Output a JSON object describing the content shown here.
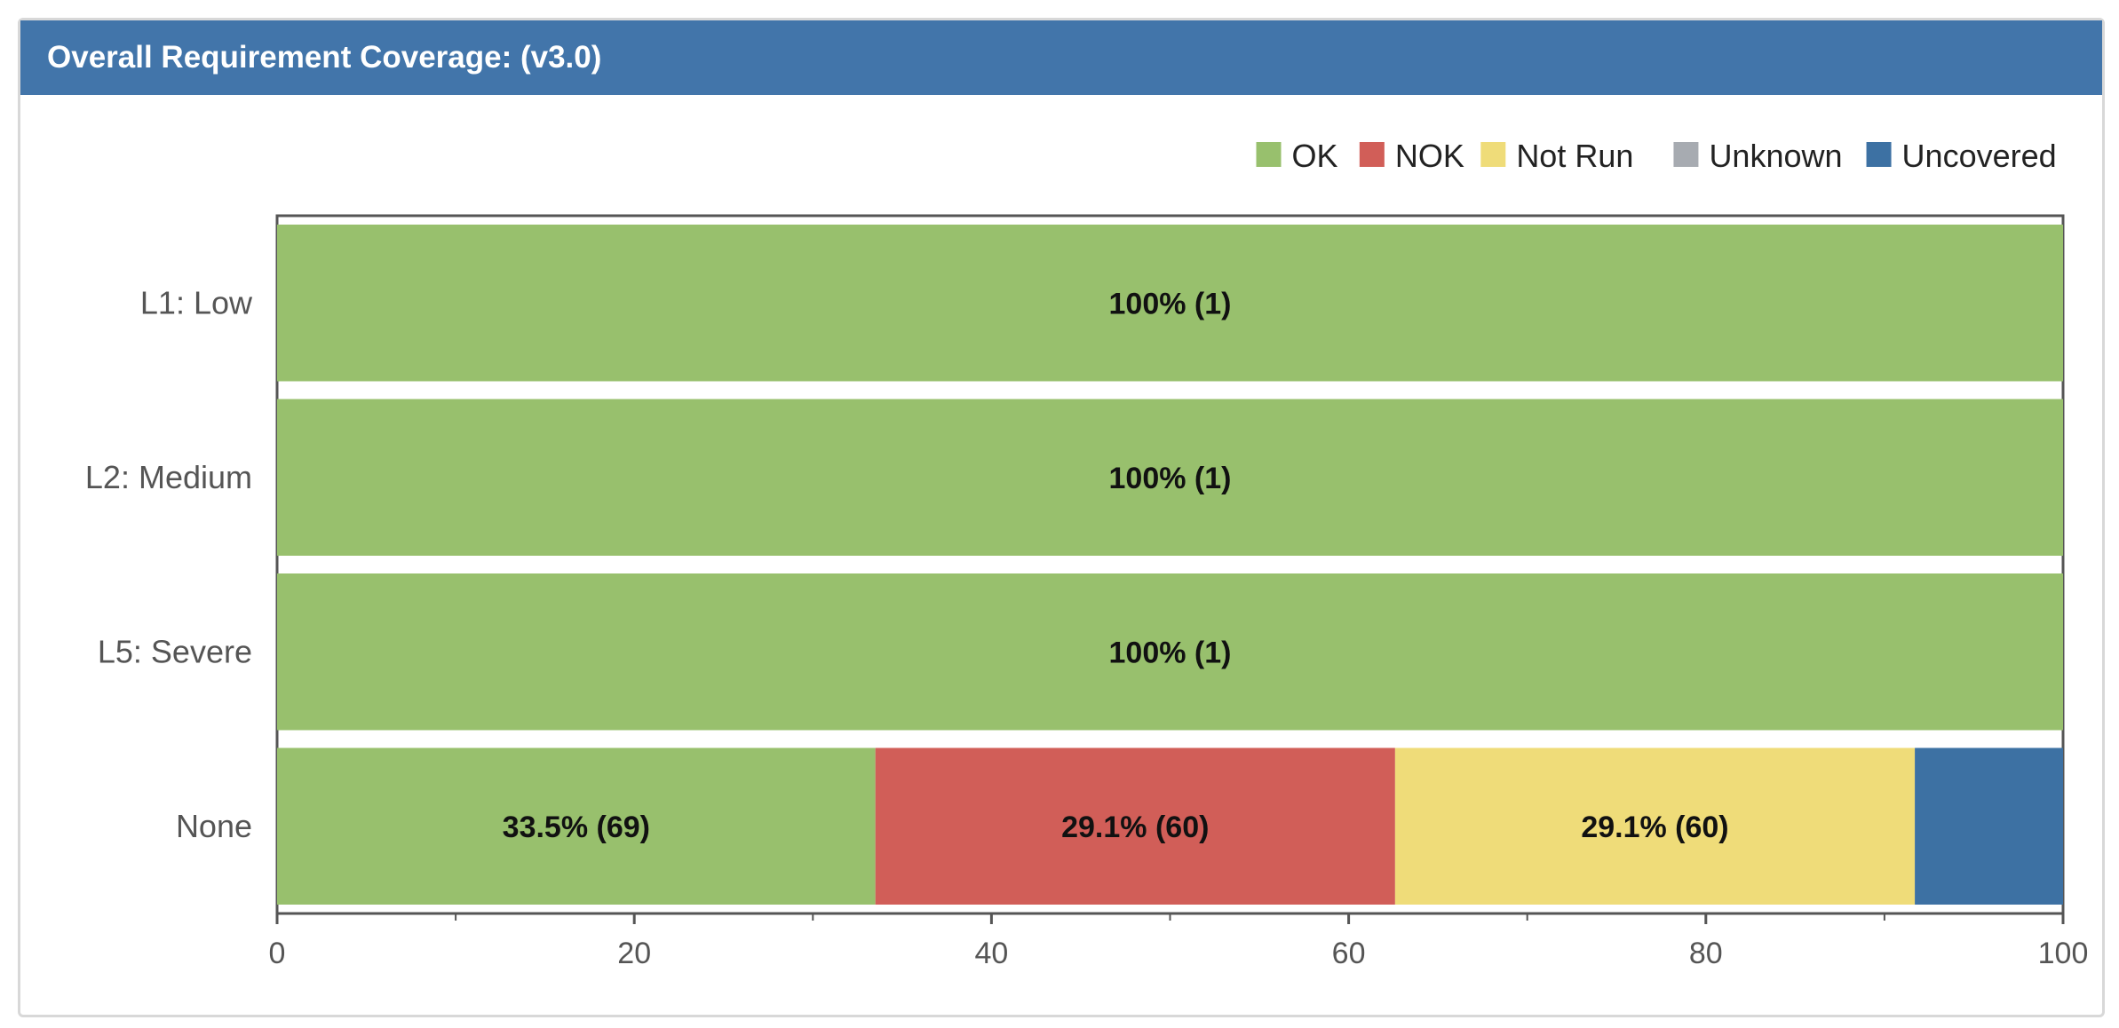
{
  "panel": {
    "title": "Overall Requirement Coverage: (v3.0)"
  },
  "colors": {
    "header": "#4275aa",
    "OK": "#98c06d",
    "NOK": "#d15e58",
    "Not Run": "#efdc79",
    "Unknown": "#a7abb1",
    "Uncovered": "#3d71a3"
  },
  "chart_data": {
    "type": "bar",
    "orientation": "horizontal",
    "stacked": true,
    "categories": [
      "L1: Low",
      "L2: Medium",
      "L5: Severe",
      "None"
    ],
    "legend": [
      "OK",
      "NOK",
      "Not Run",
      "Unknown",
      "Uncovered"
    ],
    "legend_position": "top-right",
    "xlim": [
      0,
      100
    ],
    "xticks": [
      0,
      20,
      40,
      60,
      80,
      100
    ],
    "series": [
      {
        "name": "OK",
        "values": [
          100,
          100,
          100,
          33.5
        ],
        "labels": [
          "100% (1)",
          "100% (1)",
          "100% (1)",
          "33.5% (69)"
        ]
      },
      {
        "name": "NOK",
        "values": [
          0,
          0,
          0,
          29.1
        ],
        "labels": [
          "",
          "",
          "",
          "29.1% (60)"
        ]
      },
      {
        "name": "Not Run",
        "values": [
          0,
          0,
          0,
          29.1
        ],
        "labels": [
          "",
          "",
          "",
          "29.1% (60)"
        ]
      },
      {
        "name": "Unknown",
        "values": [
          0,
          0,
          0,
          0
        ],
        "labels": [
          "",
          "",
          "",
          ""
        ]
      },
      {
        "name": "Uncovered",
        "values": [
          0,
          0,
          0,
          8.3
        ],
        "labels": [
          "",
          "",
          "",
          ""
        ]
      }
    ]
  }
}
